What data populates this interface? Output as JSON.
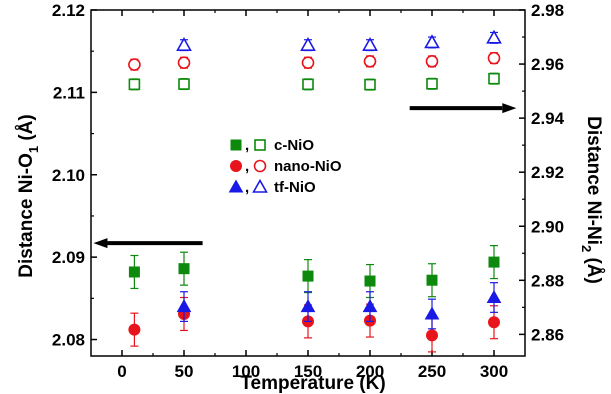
{
  "chart_data": {
    "type": "scatter",
    "x": [
      10,
      50,
      150,
      200,
      250,
      300
    ],
    "xlabel": "Temperature (K)",
    "xlim": [
      -25,
      325
    ],
    "xticks": [
      0,
      50,
      100,
      150,
      200,
      250,
      300
    ],
    "ylabel_left": "Distance Ni-O",
    "ylabel_left_sub": "1",
    "ylabel_left_unit": " (Å)",
    "ylim_left": [
      2.078,
      2.12
    ],
    "yticks_left": [
      2.08,
      2.09,
      2.1,
      2.11,
      2.12
    ],
    "ylabel_right": "Distance Ni-Ni",
    "ylabel_right_sub": "2",
    "ylabel_right_unit": " (Å)",
    "ylim_right": [
      2.852,
      2.98
    ],
    "yticks_right": [
      2.86,
      2.88,
      2.9,
      2.92,
      2.94,
      2.96,
      2.98
    ],
    "legend_placement": "center",
    "legend_separator": ",",
    "series": [
      {
        "name": "c-NiO",
        "axis": "left",
        "marker": "square",
        "filled": true,
        "color": "#0d8a0d",
        "points": [
          [
            10,
            2.0882,
            0.002
          ],
          [
            50,
            2.0886,
            0.002
          ],
          [
            150,
            2.0877,
            0.002
          ],
          [
            200,
            2.0871,
            0.002
          ],
          [
            250,
            2.0872,
            0.002
          ],
          [
            300,
            2.0894,
            0.002
          ]
        ]
      },
      {
        "name": "nano-NiO",
        "axis": "left",
        "marker": "circle",
        "filled": true,
        "color": "#e8141c",
        "points": [
          [
            10,
            2.0812,
            0.002
          ],
          [
            50,
            2.0831,
            0.002
          ],
          [
            150,
            2.0822,
            0.002
          ],
          [
            200,
            2.0823,
            0.002
          ],
          [
            250,
            2.0805,
            0.002
          ],
          [
            300,
            2.0821,
            0.002
          ]
        ]
      },
      {
        "name": "tf-NiO",
        "axis": "left",
        "marker": "triangle",
        "filled": true,
        "color": "#1a1ae6",
        "points": [
          [
            50,
            2.084,
            0.0018
          ],
          [
            150,
            2.084,
            0.0018
          ],
          [
            200,
            2.084,
            0.0018
          ],
          [
            250,
            2.0831,
            0.0018
          ],
          [
            300,
            2.0851,
            0.0018
          ]
        ]
      },
      {
        "name": "c-NiO",
        "axis": "right",
        "marker": "square",
        "filled": false,
        "color": "#0d8a0d",
        "points": [
          [
            10,
            2.9525,
            0.002
          ],
          [
            50,
            2.9526,
            0.002
          ],
          [
            150,
            2.9525,
            0.002
          ],
          [
            200,
            2.9524,
            0.002
          ],
          [
            250,
            2.9527,
            0.002
          ],
          [
            300,
            2.9546,
            0.002
          ]
        ]
      },
      {
        "name": "nano-NiO",
        "axis": "right",
        "marker": "circle",
        "filled": false,
        "color": "#e8141c",
        "points": [
          [
            10,
            2.9598,
            0.002
          ],
          [
            50,
            2.9605,
            0.002
          ],
          [
            150,
            2.9605,
            0.002
          ],
          [
            200,
            2.961,
            0.002
          ],
          [
            250,
            2.961,
            0.002
          ],
          [
            300,
            2.9622,
            0.002
          ]
        ]
      },
      {
        "name": "tf-NiO",
        "axis": "right",
        "marker": "triangle",
        "filled": false,
        "color": "#1a1ae6",
        "points": [
          [
            50,
            2.967,
            0.002
          ],
          [
            150,
            2.967,
            0.002
          ],
          [
            200,
            2.967,
            0.002
          ],
          [
            250,
            2.968,
            0.002
          ],
          [
            300,
            2.9697,
            0.002
          ]
        ]
      }
    ],
    "annotations": [
      {
        "type": "arrow",
        "direction": "left",
        "axis": "left",
        "x_from": 65,
        "x_to": -23,
        "y": 2.0917
      },
      {
        "type": "arrow",
        "direction": "right",
        "axis": "right",
        "x_from": 232,
        "x_to": 318,
        "y": 2.9437
      }
    ]
  }
}
